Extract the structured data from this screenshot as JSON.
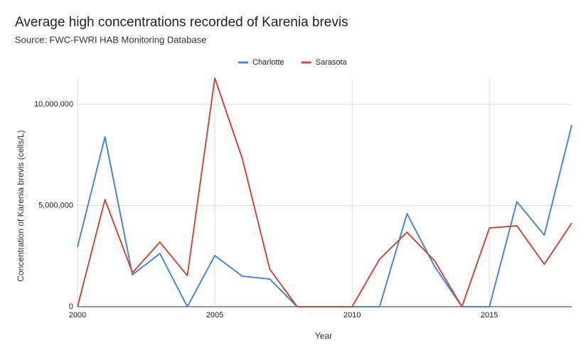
{
  "chart_data": {
    "type": "line",
    "title": "Average high concentrations recorded of Karenia brevis",
    "subtitle": "Source: FWC-FWRI HAB Monitoring Database",
    "x_label": "Year",
    "y_label": "Concentration of Karenia brevis (cells/L)",
    "x": [
      2000,
      2001,
      2002,
      2003,
      2004,
      2005,
      2006,
      2007,
      2008,
      2009,
      2010,
      2011,
      2012,
      2013,
      2014,
      2015,
      2016,
      2017,
      2018
    ],
    "series": [
      {
        "name": "Charlotte",
        "color": "#4a86d4",
        "values": [
          2950000,
          8390000,
          1580000,
          2630000,
          0,
          2530000,
          1510000,
          1370000,
          0,
          0,
          0,
          0,
          4600000,
          2000000,
          0,
          0,
          5190000,
          3540000,
          8980000
        ]
      },
      {
        "name": "Sarasota",
        "color": "#cc4b3f",
        "values": [
          0,
          5300000,
          1680000,
          3190000,
          1540000,
          11300000,
          7330000,
          1860000,
          0,
          0,
          0,
          2350000,
          3680000,
          2280000,
          0,
          3890000,
          4000000,
          2100000,
          4140000
        ]
      }
    ],
    "xlim": [
      2000,
      2018
    ],
    "xticks": [
      2000,
      2005,
      2010,
      2015
    ],
    "ylim": [
      0,
      11300000
    ],
    "yticks": [
      0,
      {
        "value": 5000000,
        "label": "5,000,000"
      },
      {
        "value": 10000000,
        "label": "10,000,000"
      }
    ],
    "grid": true,
    "legend": "top"
  }
}
